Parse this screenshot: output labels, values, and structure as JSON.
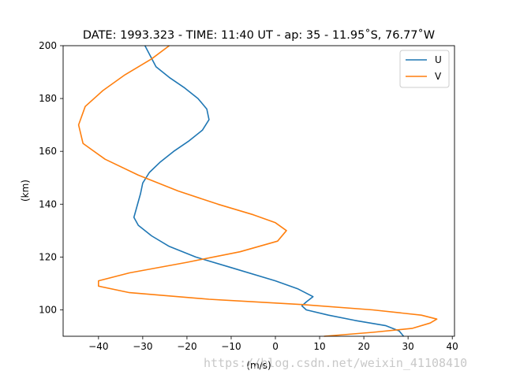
{
  "chart_data": {
    "type": "line",
    "title": "DATE: 1993.323 - TIME: 11:40 UT - ap:  35 -  11.95˚S,  76.77˚W",
    "xlabel": "(m/s)",
    "ylabel": "(km)",
    "xlim": [
      -48,
      40.5
    ],
    "ylim": [
      90,
      200
    ],
    "xticks": [
      -40,
      -30,
      -20,
      -10,
      0,
      10,
      20,
      30,
      40
    ],
    "yticks": [
      100,
      120,
      140,
      160,
      180,
      200
    ],
    "grid": false,
    "legend": "top-right",
    "series": [
      {
        "name": "U",
        "color": "#1f77b4",
        "x": [
          29,
          28,
          25,
          18,
          12,
          7,
          6,
          7,
          8.5,
          5,
          0,
          -10,
          -18,
          -24,
          -28,
          -31,
          -32,
          -31.5,
          -31,
          -30.5,
          -30,
          -28.5,
          -26,
          -23,
          -19.5,
          -16.5,
          -15,
          -15.5,
          -17.5,
          -20.5,
          -24,
          -27,
          -29.5
        ],
        "y": [
          90,
          92,
          94,
          96,
          98,
          100,
          101.5,
          103,
          105,
          108,
          111,
          116,
          120,
          124,
          128,
          132,
          135,
          138,
          141,
          144,
          148,
          152,
          156,
          160,
          164,
          168,
          172,
          176,
          180,
          184,
          188,
          192,
          200
        ]
      },
      {
        "name": "V",
        "color": "#ff7f0e",
        "x": [
          11,
          22,
          31,
          35,
          36.5,
          33,
          22,
          6,
          -15,
          -33,
          -40,
          -40,
          -33,
          -20,
          -8,
          0.5,
          2.5,
          0,
          -5,
          -13,
          -22,
          -31,
          -38.5,
          -43.5,
          -44.5,
          -43,
          -39,
          -34,
          -28,
          -24
        ],
        "y": [
          90,
          91.5,
          93,
          95,
          96.5,
          98,
          100,
          102,
          104,
          106.5,
          109,
          111,
          114,
          118,
          122,
          126,
          130,
          133,
          136,
          140,
          145,
          151,
          157,
          163,
          170,
          177,
          183,
          189,
          195,
          200
        ]
      }
    ],
    "watermark": "https://blog.csdn.net/weixin_41108410"
  }
}
